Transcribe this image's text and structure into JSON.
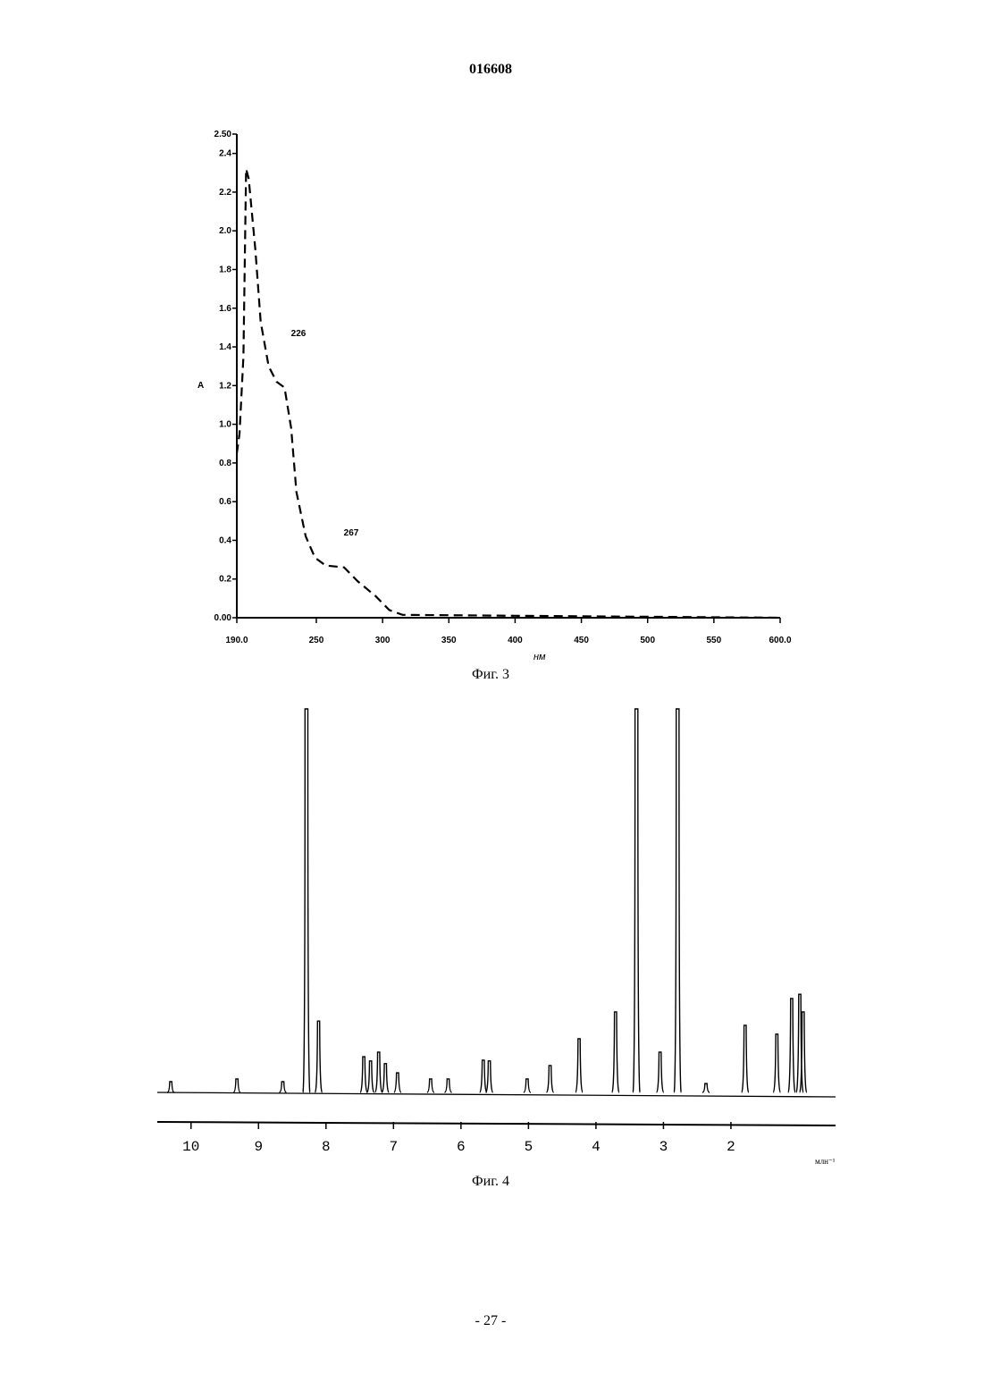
{
  "header": "016608",
  "chart_data": [
    {
      "type": "line",
      "style": "dashed",
      "color": "#000000",
      "x": [
        190,
        192,
        195,
        197,
        199,
        204,
        208,
        214,
        220,
        226,
        231,
        235,
        242,
        249,
        257,
        271,
        281,
        295,
        305,
        315,
        400,
        500,
        600
      ],
      "values": [
        0.85,
        0.95,
        1.35,
        2.32,
        2.27,
        1.9,
        1.53,
        1.3,
        1.22,
        1.19,
        0.98,
        0.65,
        0.42,
        0.31,
        0.27,
        0.26,
        0.19,
        0.11,
        0.04,
        0.015,
        0.01,
        0.005,
        0
      ],
      "xlim": [
        190,
        600
      ],
      "ylim": [
        0,
        2.5
      ],
      "xticks": [
        {
          "value": 190,
          "label": "190.0"
        },
        250,
        300,
        350,
        400,
        450,
        500,
        550,
        {
          "value": 600,
          "label": "600.0"
        }
      ],
      "yticks": [
        {
          "value": 0,
          "label": "0.00"
        },
        0.2,
        0.4,
        0.6,
        0.8,
        {
          "value": 1,
          "label": "1.0"
        },
        1.2,
        1.4,
        1.6,
        1.8,
        {
          "value": 2,
          "label": "2.0"
        },
        2.2,
        2.4,
        {
          "value": 2.5,
          "label": "2.50"
        }
      ],
      "ylabel": "A",
      "xlabel": "нм",
      "annotations": [
        "226",
        "267"
      ],
      "caption": "Фиг. 3"
    },
    {
      "type": "peaks",
      "color": "#000000",
      "x": [
        10.3,
        9.32,
        8.64,
        8.29,
        8.11,
        7.44,
        7.34,
        7.22,
        7.12,
        6.94,
        6.45,
        6.19,
        5.67,
        5.58,
        5.02,
        4.68,
        4.25,
        3.71,
        3.4,
        3.05,
        2.79,
        2.37,
        1.79,
        1.32,
        1.1,
        0.98,
        0.93
      ],
      "values": [
        2.8,
        3.5,
        2.8,
        100,
        18.6,
        9.3,
        8.2,
        10.5,
        7.5,
        5.1,
        3.5,
        3.5,
        8.4,
        8.2,
        3.5,
        7.0,
        14,
        21,
        100,
        10.5,
        100,
        2.3,
        17.5,
        15.2,
        24.5,
        25.6,
        21
      ],
      "xlim": [
        10.5,
        0.45
      ],
      "ylim": [
        0,
        100
      ],
      "xticks": [
        10,
        9,
        8,
        7,
        6,
        5,
        4,
        3,
        2
      ],
      "xlabel": "млн⁻¹",
      "caption": "Фиг. 4"
    }
  ],
  "footer": "- 27 -"
}
